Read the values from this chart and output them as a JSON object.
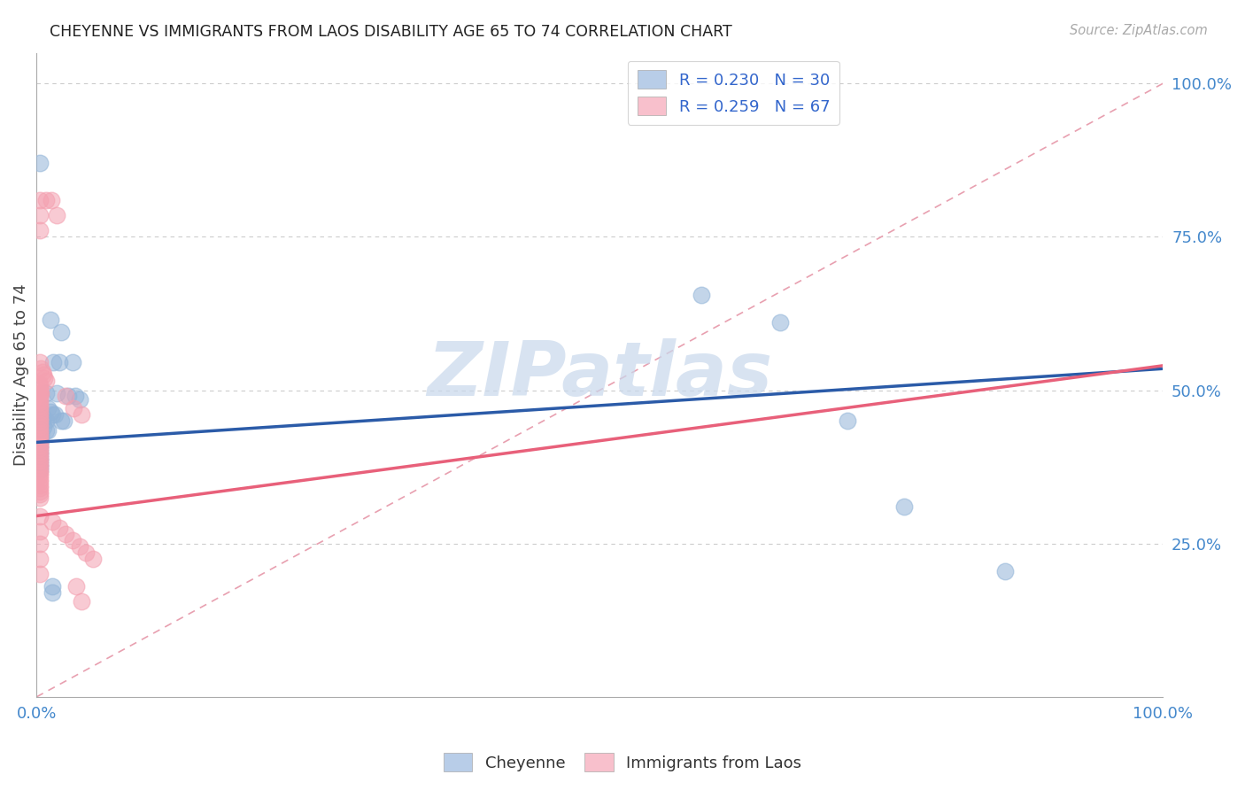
{
  "title": "CHEYENNE VS IMMIGRANTS FROM LAOS DISABILITY AGE 65 TO 74 CORRELATION CHART",
  "source": "Source: ZipAtlas.com",
  "ylabel": "Disability Age 65 to 74",
  "blue_color": "#92B4D8",
  "pink_color": "#F4A0B0",
  "blue_line_color": "#2B5BA8",
  "pink_line_color": "#E8607A",
  "diagonal_color": "#F4A0B0",
  "watermark_text": "ZIPatlas",
  "watermark_color": "#C8D8EC",
  "cheyenne_data": [
    [
      0.003,
      0.87
    ],
    [
      0.012,
      0.615
    ],
    [
      0.022,
      0.595
    ],
    [
      0.015,
      0.545
    ],
    [
      0.02,
      0.545
    ],
    [
      0.032,
      0.545
    ],
    [
      0.008,
      0.495
    ],
    [
      0.018,
      0.495
    ],
    [
      0.028,
      0.49
    ],
    [
      0.034,
      0.49
    ],
    [
      0.038,
      0.485
    ],
    [
      0.01,
      0.47
    ],
    [
      0.012,
      0.465
    ],
    [
      0.014,
      0.46
    ],
    [
      0.016,
      0.46
    ],
    [
      0.004,
      0.455
    ],
    [
      0.006,
      0.455
    ],
    [
      0.008,
      0.45
    ],
    [
      0.022,
      0.45
    ],
    [
      0.024,
      0.45
    ],
    [
      0.004,
      0.44
    ],
    [
      0.006,
      0.44
    ],
    [
      0.008,
      0.435
    ],
    [
      0.01,
      0.435
    ],
    [
      0.004,
      0.43
    ],
    [
      0.004,
      0.425
    ],
    [
      0.003,
      0.42
    ],
    [
      0.003,
      0.415
    ],
    [
      0.003,
      0.415
    ],
    [
      0.003,
      0.41
    ],
    [
      0.003,
      0.405
    ],
    [
      0.003,
      0.4
    ],
    [
      0.003,
      0.395
    ],
    [
      0.003,
      0.39
    ],
    [
      0.003,
      0.385
    ],
    [
      0.003,
      0.38
    ],
    [
      0.003,
      0.375
    ],
    [
      0.003,
      0.37
    ],
    [
      0.014,
      0.18
    ],
    [
      0.014,
      0.17
    ],
    [
      0.59,
      0.655
    ],
    [
      0.66,
      0.61
    ],
    [
      0.72,
      0.45
    ],
    [
      0.77,
      0.31
    ],
    [
      0.86,
      0.205
    ]
  ],
  "laos_data": [
    [
      0.003,
      0.81
    ],
    [
      0.008,
      0.81
    ],
    [
      0.013,
      0.81
    ],
    [
      0.003,
      0.785
    ],
    [
      0.018,
      0.785
    ],
    [
      0.003,
      0.76
    ],
    [
      0.003,
      0.545
    ],
    [
      0.004,
      0.535
    ],
    [
      0.005,
      0.53
    ],
    [
      0.006,
      0.525
    ],
    [
      0.007,
      0.52
    ],
    [
      0.008,
      0.515
    ],
    [
      0.003,
      0.51
    ],
    [
      0.003,
      0.505
    ],
    [
      0.003,
      0.5
    ],
    [
      0.003,
      0.495
    ],
    [
      0.004,
      0.495
    ],
    [
      0.003,
      0.49
    ],
    [
      0.003,
      0.485
    ],
    [
      0.003,
      0.48
    ],
    [
      0.003,
      0.475
    ],
    [
      0.003,
      0.47
    ],
    [
      0.003,
      0.465
    ],
    [
      0.003,
      0.46
    ],
    [
      0.003,
      0.455
    ],
    [
      0.003,
      0.45
    ],
    [
      0.003,
      0.445
    ],
    [
      0.003,
      0.44
    ],
    [
      0.003,
      0.435
    ],
    [
      0.003,
      0.43
    ],
    [
      0.003,
      0.425
    ],
    [
      0.003,
      0.42
    ],
    [
      0.003,
      0.415
    ],
    [
      0.003,
      0.41
    ],
    [
      0.003,
      0.405
    ],
    [
      0.003,
      0.4
    ],
    [
      0.003,
      0.395
    ],
    [
      0.003,
      0.39
    ],
    [
      0.003,
      0.385
    ],
    [
      0.003,
      0.38
    ],
    [
      0.003,
      0.375
    ],
    [
      0.003,
      0.37
    ],
    [
      0.003,
      0.365
    ],
    [
      0.003,
      0.36
    ],
    [
      0.003,
      0.355
    ],
    [
      0.003,
      0.35
    ],
    [
      0.003,
      0.345
    ],
    [
      0.003,
      0.34
    ],
    [
      0.003,
      0.335
    ],
    [
      0.003,
      0.33
    ],
    [
      0.003,
      0.325
    ],
    [
      0.003,
      0.295
    ],
    [
      0.003,
      0.27
    ],
    [
      0.003,
      0.25
    ],
    [
      0.003,
      0.225
    ],
    [
      0.003,
      0.2
    ],
    [
      0.014,
      0.285
    ],
    [
      0.02,
      0.275
    ],
    [
      0.026,
      0.265
    ],
    [
      0.032,
      0.255
    ],
    [
      0.038,
      0.245
    ],
    [
      0.044,
      0.235
    ],
    [
      0.05,
      0.225
    ],
    [
      0.035,
      0.18
    ],
    [
      0.04,
      0.155
    ],
    [
      0.026,
      0.49
    ],
    [
      0.033,
      0.47
    ],
    [
      0.04,
      0.46
    ]
  ],
  "xlim": [
    0.0,
    1.0
  ],
  "ylim": [
    0.0,
    1.05
  ],
  "blue_trend": [
    0.415,
    0.535
  ],
  "pink_trend": [
    0.295,
    0.54
  ]
}
